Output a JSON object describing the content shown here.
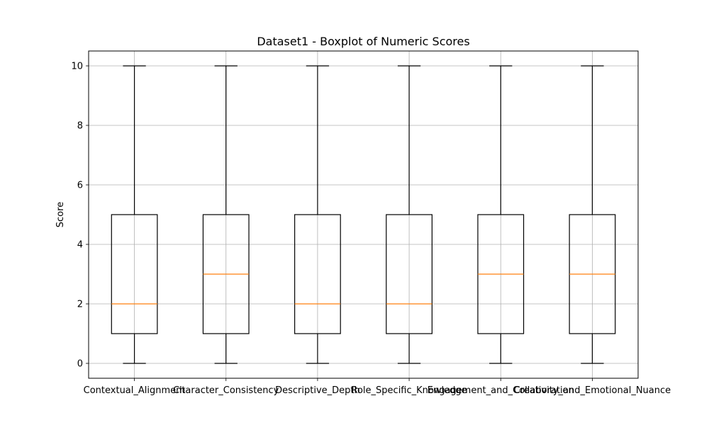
{
  "chart_data": {
    "type": "box",
    "title": "Dataset1 - Boxplot of Numeric Scores",
    "xlabel": "",
    "ylabel": "Score",
    "ylim": [
      -0.5,
      10.5
    ],
    "yticks": [
      0,
      2,
      4,
      6,
      8,
      10
    ],
    "grid": true,
    "legend": "none",
    "categories": [
      "Contextual_Alignment",
      "Character_Consistency",
      "Descriptive_Depth",
      "Role_Specific_Knowledge",
      "Engagement_and_Collaboration",
      "Creativity_and_Emotional_Nuance"
    ],
    "boxes": [
      {
        "min": 0,
        "q1": 1,
        "median": 2,
        "q3": 5,
        "max": 10
      },
      {
        "min": 0,
        "q1": 1,
        "median": 3,
        "q3": 5,
        "max": 10
      },
      {
        "min": 0,
        "q1": 1,
        "median": 2,
        "q3": 5,
        "max": 10
      },
      {
        "min": 0,
        "q1": 1,
        "median": 2,
        "q3": 5,
        "max": 10
      },
      {
        "min": 0,
        "q1": 1,
        "median": 3,
        "q3": 5,
        "max": 10
      },
      {
        "min": 0,
        "q1": 1,
        "median": 3,
        "q3": 5,
        "max": 10
      }
    ],
    "colors": {
      "box": "#000000",
      "median": "#ff7f0e",
      "grid": "#b0b0b0"
    }
  }
}
